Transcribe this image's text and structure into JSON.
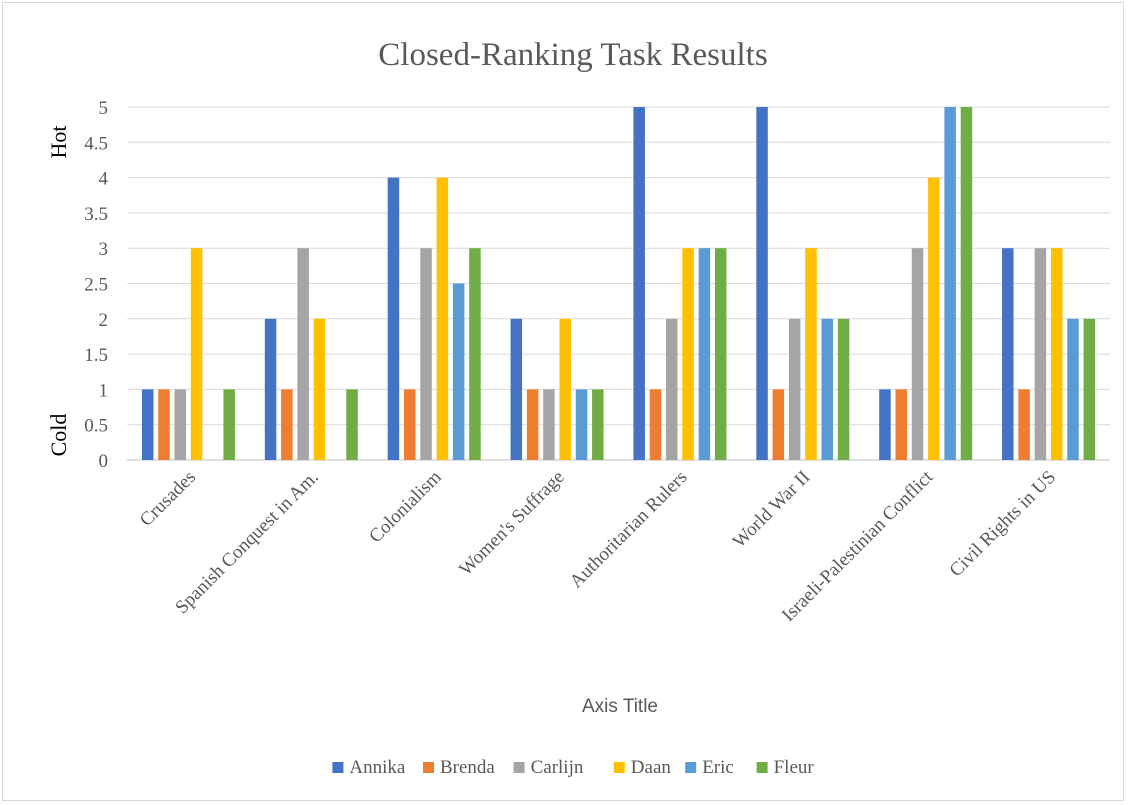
{
  "chart_data": {
    "type": "bar",
    "title": "Closed-Ranking Task Results",
    "xlabel": "Axis Title",
    "ylabel_top": "Hot",
    "ylabel_bottom": "Cold",
    "ylim": [
      0,
      5
    ],
    "yticks": [
      "0",
      "0.5",
      "1",
      "1.5",
      "2",
      "2.5",
      "3",
      "3.5",
      "4",
      "4.5",
      "5"
    ],
    "grid": true,
    "legend_position": "bottom",
    "categories": [
      "Crusades",
      "Spanish Conquest in Am.",
      "Colonialism",
      "Women's Suffrage",
      "Authoritarian Rulers",
      "World War II",
      "Israeli-Palestinian Conflict",
      "Civil Rights in US"
    ],
    "series": [
      {
        "name": "Annika",
        "color": "#4472C4",
        "values": [
          1,
          2,
          4,
          2,
          5,
          5,
          1,
          3
        ]
      },
      {
        "name": "Brenda",
        "color": "#ED7D31",
        "values": [
          1,
          1,
          1,
          1,
          1,
          1,
          1,
          1
        ]
      },
      {
        "name": "Carlijn",
        "color": "#A5A5A5",
        "values": [
          1,
          3,
          3,
          1,
          2,
          2,
          3,
          3
        ]
      },
      {
        "name": "Daan",
        "color": "#FFC000",
        "values": [
          3,
          2,
          4,
          2,
          3,
          3,
          4,
          3
        ]
      },
      {
        "name": "Eric",
        "color": "#5B9BD5",
        "values": [
          0,
          0,
          2.5,
          1,
          3,
          2,
          5,
          2
        ]
      },
      {
        "name": "Fleur",
        "color": "#70AD47",
        "values": [
          1,
          1,
          3,
          1,
          3,
          2,
          5,
          2
        ]
      }
    ]
  }
}
